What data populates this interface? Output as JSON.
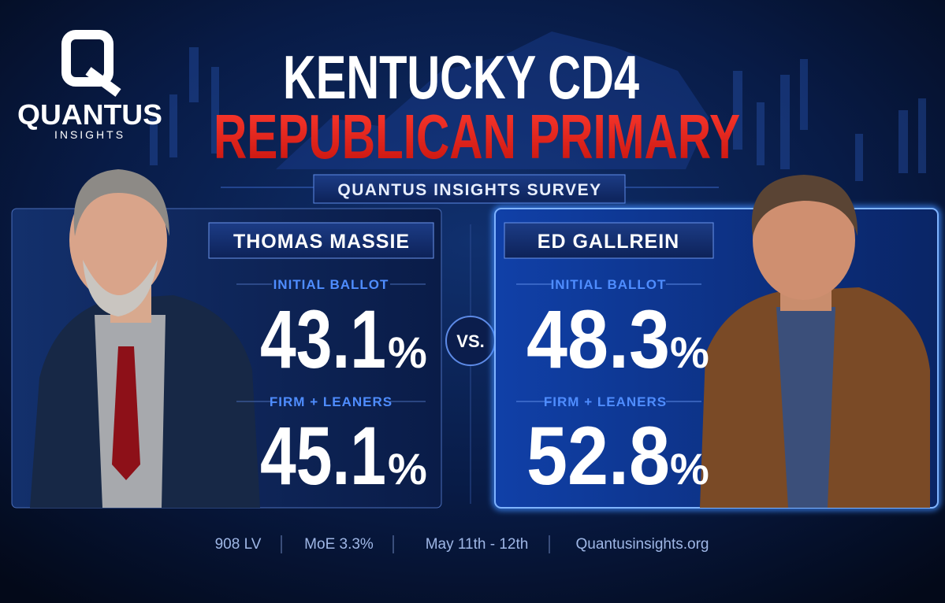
{
  "logo": {
    "name": "QUANTUS",
    "tagline": "INSIGHTS"
  },
  "header": {
    "title_line1": "KENTUCKY CD4",
    "title_line2": "REPUBLICAN PRIMARY",
    "subtitle": "QUANTUS INSIGHTS SURVEY"
  },
  "candidates": [
    {
      "name": "THOMAS MASSIE",
      "results": [
        {
          "label": "INITIAL BALLOT",
          "value": "43.1",
          "unit": "%"
        },
        {
          "label": "FIRM + LEANERS",
          "value": "45.1",
          "unit": "%"
        }
      ]
    },
    {
      "name": "ED GALLREIN",
      "results": [
        {
          "label": "INITIAL BALLOT",
          "value": "48.3",
          "unit": "%"
        },
        {
          "label": "FIRM + LEANERS",
          "value": "52.8",
          "unit": "%"
        }
      ]
    }
  ],
  "versus": "VS.",
  "footer": [
    "908 LV",
    "MoE 3.3%",
    "May 11th - 12th",
    "Quantusinsights.org"
  ]
}
